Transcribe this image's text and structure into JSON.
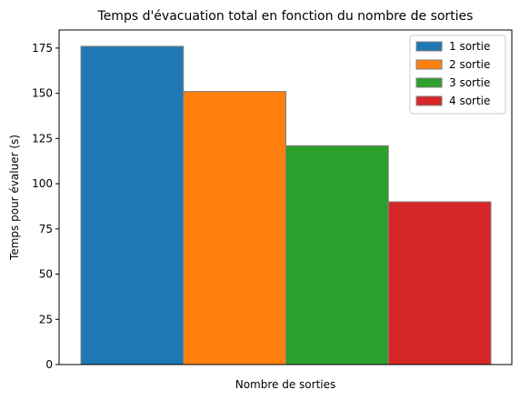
{
  "chart_data": {
    "type": "bar",
    "title": "Temps d'évacuation total en fonction du nombre de sorties",
    "xlabel": "Nombre de sorties",
    "ylabel": "Temps pour évaluer (s)",
    "ylim": [
      0,
      185
    ],
    "yticks": [
      0,
      25,
      50,
      75,
      100,
      125,
      150,
      175
    ],
    "grid": false,
    "legend_position": "top-right",
    "series": [
      {
        "name": "1 sortie",
        "value": 176,
        "color": "#1f77b4"
      },
      {
        "name": "2 sortie",
        "value": 151,
        "color": "#ff7f0e"
      },
      {
        "name": "3 sortie",
        "value": 121,
        "color": "#2ca02c"
      },
      {
        "name": "4 sortie",
        "value": 90,
        "color": "#d62728"
      }
    ]
  }
}
